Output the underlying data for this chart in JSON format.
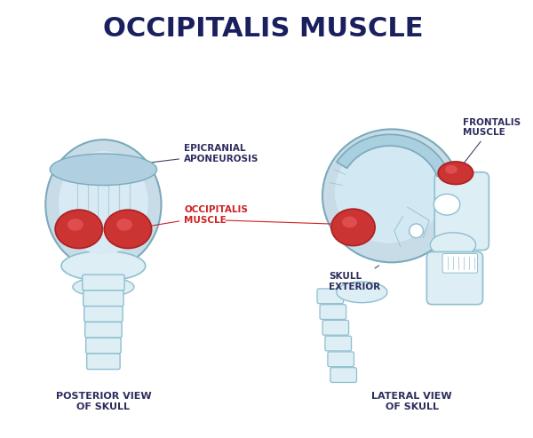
{
  "title": "OCCIPITALIS MUSCLE",
  "title_color": "#1a1f5e",
  "title_fontsize": 22,
  "bg_color": "#ffffff",
  "label_color": "#2d2d5e",
  "label_fontsize": 7.5,
  "red_label_color": "#cc2222",
  "skull_fill": "#c8dce8",
  "skull_stroke": "#7aaabb",
  "bone_fill": "#ddeef5",
  "bone_stroke": "#8fbfcf",
  "muscle_red_fill": "#cc3333",
  "muscle_red_stroke": "#aa2222",
  "posterior_label": "POSTERIOR VIEW\nOF SKULL",
  "lateral_label": "LATERAL VIEW\nOF SKULL",
  "annotations": {
    "epicranial": "EPICRANIAL\nAPONEUROSIS",
    "occipitalis": "OCCIPITALIS\nMUSCLE",
    "skull_ext": "SKULL\nEXTERIOR",
    "frontalis": "FRONTALIS\nMUSCLE"
  }
}
